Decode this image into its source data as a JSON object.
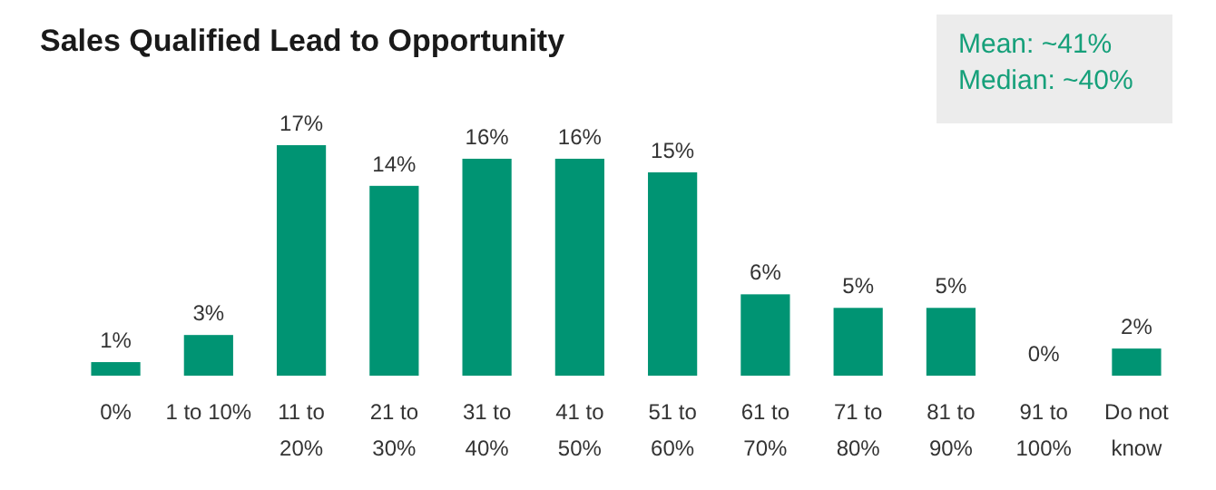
{
  "chart_data": {
    "type": "bar",
    "title": "Sales Qualified Lead to Opportunity",
    "categories": [
      "0%",
      "1 to 10%",
      "11 to 20%",
      "21 to 30%",
      "31 to 40%",
      "41 to 50%",
      "51 to 60%",
      "61 to 70%",
      "71 to 80%",
      "81 to 90%",
      "91 to 100%",
      "Do not know"
    ],
    "values": [
      1,
      3,
      17,
      14,
      16,
      16,
      15,
      6,
      5,
      5,
      0,
      2
    ],
    "value_labels": [
      "1%",
      "3%",
      "17%",
      "14%",
      "16%",
      "16%",
      "15%",
      "6%",
      "5%",
      "5%",
      "0%",
      "2%"
    ],
    "color": "#009473",
    "annotations": [
      "Mean: ~41%",
      "Median: ~40%"
    ]
  }
}
